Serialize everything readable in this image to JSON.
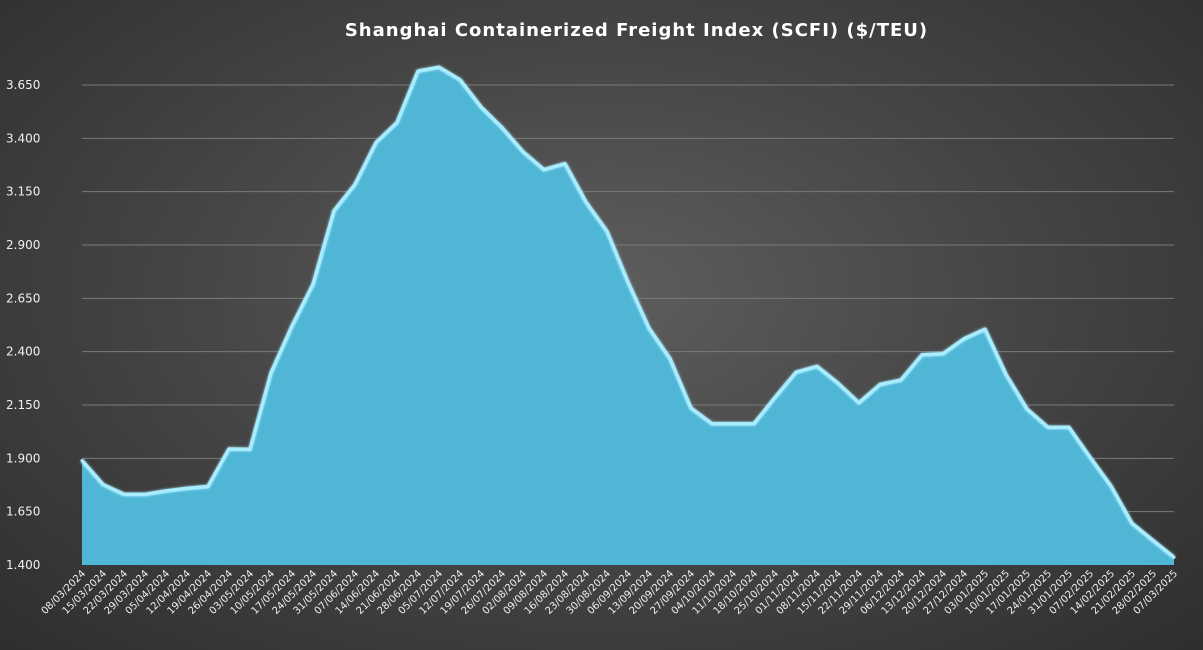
{
  "chart_data": {
    "type": "area",
    "title": "Shanghai  Containerized  Freight  Index  (SCFI) ($/TEU)",
    "xlabel": "",
    "ylabel": "",
    "ylim": [
      1400,
      3800
    ],
    "yticks": [
      1400,
      1650,
      1900,
      2150,
      2400,
      2650,
      2900,
      3150,
      3400,
      3650
    ],
    "grid": true,
    "legend": "none",
    "colors": {
      "fill": "#4fb6d6",
      "line": "#a8ecff"
    },
    "categories": [
      "08/03/2024",
      "15/03/2024",
      "22/03/2024",
      "29/03/2024",
      "05/04/2024",
      "12/04/2024",
      "19/04/2024",
      "26/04/2024",
      "03/05/2024",
      "10/05/2024",
      "17/05/2024",
      "24/05/2024",
      "31/05/2024",
      "07/06/2024",
      "14/06/2024",
      "21/06/2024",
      "28/06/2024",
      "05/07/2024",
      "12/07/2024",
      "19/07/2024",
      "26/07/2024",
      "02/08/2024",
      "09/08/2024",
      "16/08/2024",
      "23/08/2024",
      "30/08/2024",
      "06/09/2024",
      "13/09/2024",
      "20/09/2024",
      "27/09/2024",
      "04/10/2024",
      "11/10/2024",
      "18/10/2024",
      "25/10/2024",
      "01/11/2024",
      "08/11/2024",
      "15/11/2024",
      "22/11/2024",
      "29/11/2024",
      "06/12/2024",
      "13/12/2024",
      "20/12/2024",
      "27/12/2024",
      "03/01/2025",
      "10/01/2025",
      "17/01/2025",
      "24/01/2025",
      "31/01/2025",
      "07/02/2025",
      "14/02/2025",
      "21/02/2025",
      "28/02/2025",
      "07/03/2025"
    ],
    "values": [
      1890,
      1777,
      1731,
      1731,
      1747,
      1759,
      1768,
      1944,
      1942,
      2300,
      2520,
      2715,
      3060,
      3184,
      3380,
      3474,
      3715,
      3733,
      3674,
      3547,
      3450,
      3337,
      3253,
      3281,
      3101,
      2964,
      2726,
      2510,
      2367,
      2135,
      2062,
      2062,
      2062,
      2185,
      2303,
      2331,
      2252,
      2160,
      2246,
      2267,
      2385,
      2390,
      2460,
      2505,
      2293,
      2131,
      2045,
      2045,
      1905,
      1770,
      1595,
      1515,
      1436
    ]
  }
}
